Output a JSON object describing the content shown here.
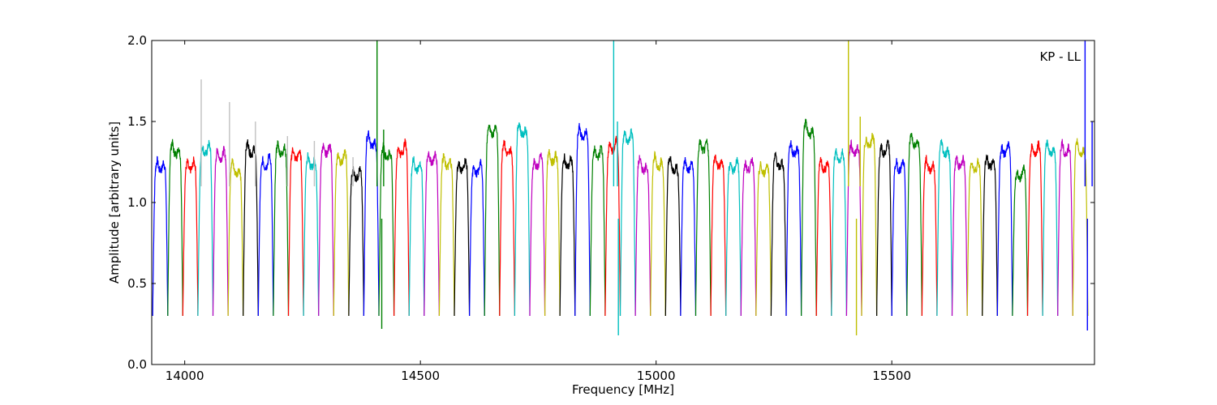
{
  "chart_data": {
    "type": "line",
    "title": "",
    "xlabel": "Frequency [MHz]",
    "ylabel": "Amplitude [arbitrary units]",
    "xlim": [
      13930,
      15930
    ],
    "ylim": [
      0.0,
      2.0
    ],
    "x_ticks": [
      14000,
      14500,
      15000,
      15500
    ],
    "y_ticks": [
      0.0,
      0.5,
      1.0,
      1.5,
      2.0
    ],
    "y_tick_labels": [
      "0.0",
      "0.5",
      "1.0",
      "1.5",
      "2.0"
    ],
    "grid": false,
    "legend": "none",
    "annotation": "KP - LL",
    "channel_width_mhz": 32,
    "edge_min": 0.3,
    "series_colors": [
      "#0000ff",
      "#008000",
      "#ff0000",
      "#00bfbf",
      "#bf00bf",
      "#bfbf00",
      "#000000"
    ],
    "channel_levels": [
      1.2,
      1.3,
      1.2,
      1.3,
      1.27,
      1.18,
      1.3,
      1.22,
      1.3,
      1.27,
      1.22,
      1.3,
      1.25,
      1.15,
      1.35,
      1.28,
      1.3,
      1.2,
      1.25,
      1.22,
      1.2,
      1.18,
      1.42,
      1.3,
      1.42,
      1.22,
      1.25,
      1.22,
      1.4,
      1.28,
      1.32,
      1.38,
      1.2,
      1.22,
      1.2,
      1.2,
      1.32,
      1.22,
      1.2,
      1.2,
      1.18,
      1.22,
      1.3,
      1.42,
      1.2,
      1.26,
      1.3,
      1.35,
      1.3,
      1.2,
      1.35,
      1.2,
      1.3,
      1.22,
      1.2,
      1.22,
      1.3,
      1.15,
      1.3,
      1.3,
      1.3,
      1.3
    ],
    "spikes": [
      {
        "x": 14035,
        "y": 1.76,
        "color": "#c0c0c0"
      },
      {
        "x": 14095,
        "y": 1.62,
        "color": "#c0c0c0"
      },
      {
        "x": 14150,
        "y": 1.5,
        "color": "#c0c0c0"
      },
      {
        "x": 14218,
        "y": 1.41,
        "color": "#c0c0c0"
      },
      {
        "x": 14275,
        "y": 1.38,
        "color": "#c0c0c0"
      },
      {
        "x": 14357,
        "y": 1.28,
        "color": "#c0c0c0"
      },
      {
        "x": 14408,
        "y": 2.0,
        "color": "#008000"
      },
      {
        "x": 14422,
        "y": 1.45,
        "color": "#008000"
      },
      {
        "x": 14910,
        "y": 2.0,
        "color": "#00bfbf"
      },
      {
        "x": 14918,
        "y": 1.5,
        "color": "#00bfbf"
      },
      {
        "x": 15408,
        "y": 2.0,
        "color": "#bfbf00"
      },
      {
        "x": 15433,
        "y": 1.53,
        "color": "#bfbf00"
      },
      {
        "x": 15910,
        "y": 2.0,
        "color": "#0000ff"
      },
      {
        "x": 15925,
        "y": 1.5,
        "color": "#0000ff"
      }
    ],
    "dips": [
      {
        "x": 14418,
        "y": 0.22,
        "color": "#008000"
      },
      {
        "x": 14920,
        "y": 0.18,
        "color": "#00bfbf"
      },
      {
        "x": 15425,
        "y": 0.18,
        "color": "#bfbf00"
      },
      {
        "x": 15915,
        "y": 0.21,
        "color": "#0000ff"
      }
    ]
  }
}
